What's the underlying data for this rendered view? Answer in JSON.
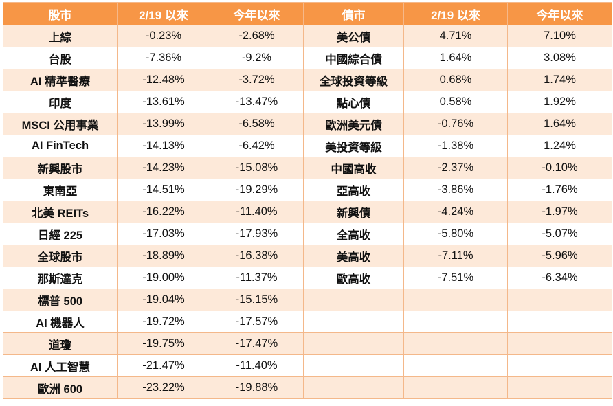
{
  "headers": {
    "stocks": "股市",
    "stock_since": "2/19 以來",
    "stock_ytd": "今年以來",
    "bonds": "債市",
    "bond_since": "2/19 以來",
    "bond_ytd": "今年以來"
  },
  "rows": [
    {
      "stock": "上綜",
      "s_since": "-0.23%",
      "s_ytd": "-2.68%",
      "bond": "美公債",
      "b_since": "4.71%",
      "b_ytd": "7.10%"
    },
    {
      "stock": "台股",
      "s_since": "-7.36%",
      "s_ytd": "-9.2%",
      "bond": "中國綜合債",
      "b_since": "1.64%",
      "b_ytd": "3.08%"
    },
    {
      "stock": "AI 精準醫療",
      "s_since": "-12.48%",
      "s_ytd": "-3.72%",
      "bond": "全球投資等級",
      "b_since": "0.68%",
      "b_ytd": "1.74%"
    },
    {
      "stock": "印度",
      "s_since": "-13.61%",
      "s_ytd": "-13.47%",
      "bond": "點心債",
      "b_since": "0.58%",
      "b_ytd": "1.92%"
    },
    {
      "stock": "MSCI 公用事業",
      "s_since": "-13.99%",
      "s_ytd": "-6.58%",
      "bond": "歐洲美元債",
      "b_since": "-0.76%",
      "b_ytd": "1.64%"
    },
    {
      "stock": "AI FinTech",
      "s_since": "-14.13%",
      "s_ytd": "-6.42%",
      "bond": "美投資等級",
      "b_since": "-1.38%",
      "b_ytd": "1.24%"
    },
    {
      "stock": "新興股市",
      "s_since": "-14.23%",
      "s_ytd": "-15.08%",
      "bond": "中國高收",
      "b_since": "-2.37%",
      "b_ytd": "-0.10%"
    },
    {
      "stock": "東南亞",
      "s_since": "-14.51%",
      "s_ytd": "-19.29%",
      "bond": "亞高收",
      "b_since": "-3.86%",
      "b_ytd": "-1.76%"
    },
    {
      "stock": "北美 REITs",
      "s_since": "-16.22%",
      "s_ytd": "-11.40%",
      "bond": "新興債",
      "b_since": "-4.24%",
      "b_ytd": "-1.97%"
    },
    {
      "stock": "日經 225",
      "s_since": "-17.03%",
      "s_ytd": "-17.93%",
      "bond": "全高收",
      "b_since": "-5.80%",
      "b_ytd": "-5.07%"
    },
    {
      "stock": "全球股市",
      "s_since": "-18.89%",
      "s_ytd": "-16.38%",
      "bond": "美高收",
      "b_since": "-7.11%",
      "b_ytd": "-5.96%"
    },
    {
      "stock": "那斯達克",
      "s_since": "-19.00%",
      "s_ytd": "-11.37%",
      "bond": "歐高收",
      "b_since": "-7.51%",
      "b_ytd": "-6.34%"
    },
    {
      "stock": "標普 500",
      "s_since": "-19.04%",
      "s_ytd": "-15.15%",
      "bond": "",
      "b_since": "",
      "b_ytd": ""
    },
    {
      "stock": "AI 機器人",
      "s_since": "-19.72%",
      "s_ytd": "-17.57%",
      "bond": "",
      "b_since": "",
      "b_ytd": ""
    },
    {
      "stock": "道瓊",
      "s_since": "-19.75%",
      "s_ytd": "-17.47%",
      "bond": "",
      "b_since": "",
      "b_ytd": ""
    },
    {
      "stock": "AI 人工智慧",
      "s_since": "-21.47%",
      "s_ytd": "-11.40%",
      "bond": "",
      "b_since": "",
      "b_ytd": ""
    },
    {
      "stock": "歐洲 600",
      "s_since": "-23.22%",
      "s_ytd": "-19.88%",
      "bond": "",
      "b_since": "",
      "b_ytd": ""
    }
  ]
}
